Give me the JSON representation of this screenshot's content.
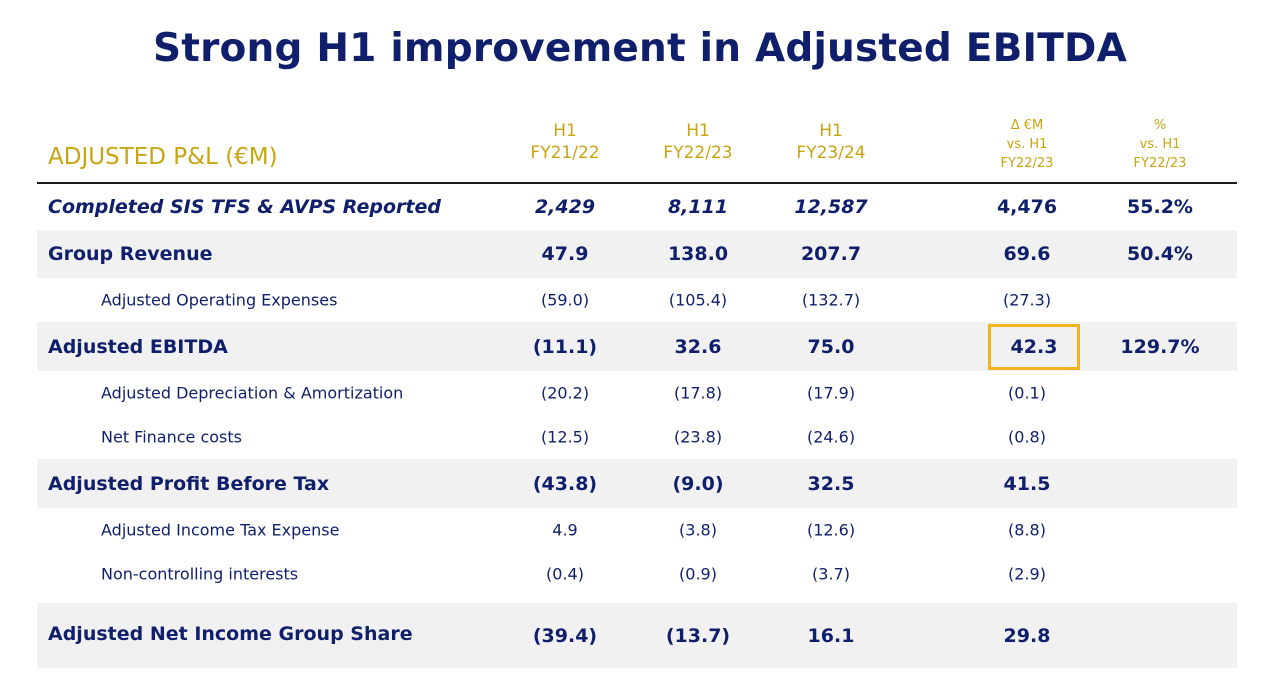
{
  "title": "Strong H1 improvement in Adjusted EBITDA",
  "table": {
    "section_label": "ADJUSTED P&L (€M)",
    "columns": [
      {
        "line1": "H1",
        "line2": "FY21/22"
      },
      {
        "line1": "H1",
        "line2": "FY22/23"
      },
      {
        "line1": "H1",
        "line2": "FY23/24"
      },
      {
        "line1": "Δ  €M",
        "line2": "vs. H1",
        "line3": "FY22/23"
      },
      {
        "line1": "%",
        "line2": "vs. H1",
        "line3": "FY22/23"
      }
    ],
    "rows": [
      {
        "label": "Completed SIS TFS & AVPS Reported",
        "values": [
          "2,429",
          "8,111",
          "12,587",
          "4,476",
          "55.2%"
        ]
      },
      {
        "label": "Group Revenue",
        "values": [
          "47.9",
          "138.0",
          "207.7",
          "69.6",
          "50.4%"
        ]
      },
      {
        "label": "Adjusted Operating Expenses",
        "values": [
          "(59.0)",
          "(105.4)",
          "(132.7)",
          "(27.3)",
          ""
        ]
      },
      {
        "label": "Adjusted EBITDA",
        "values": [
          "(11.1)",
          "32.6",
          "75.0",
          "42.3",
          "129.7%"
        ]
      },
      {
        "label": "Adjusted Depreciation & Amortization",
        "values": [
          "(20.2)",
          "(17.8)",
          "(17.9)",
          "(0.1)",
          ""
        ]
      },
      {
        "label": "Net Finance costs",
        "values": [
          "(12.5)",
          "(23.8)",
          "(24.6)",
          "(0.8)",
          ""
        ]
      },
      {
        "label": "Adjusted Profit Before Tax",
        "values": [
          "(43.8)",
          "(9.0)",
          "32.5",
          "41.5",
          ""
        ]
      },
      {
        "label": "Adjusted Income Tax Expense",
        "values": [
          "4.9",
          "(3.8)",
          "(12.6)",
          "(8.8)",
          ""
        ]
      },
      {
        "label": "Non-controlling interests",
        "values": [
          "(0.4)",
          "(0.9)",
          "(3.7)",
          "(2.9)",
          ""
        ]
      },
      {
        "label": "Adjusted Net Income Group Share",
        "values": [
          "(39.4)",
          "(13.7)",
          "16.1",
          "29.8",
          ""
        ]
      }
    ]
  },
  "colors": {
    "navy": "#0f1f6b",
    "gold": "#c9a411",
    "highlight": "#f2b21b",
    "row_shade": "#f1f1f1"
  }
}
